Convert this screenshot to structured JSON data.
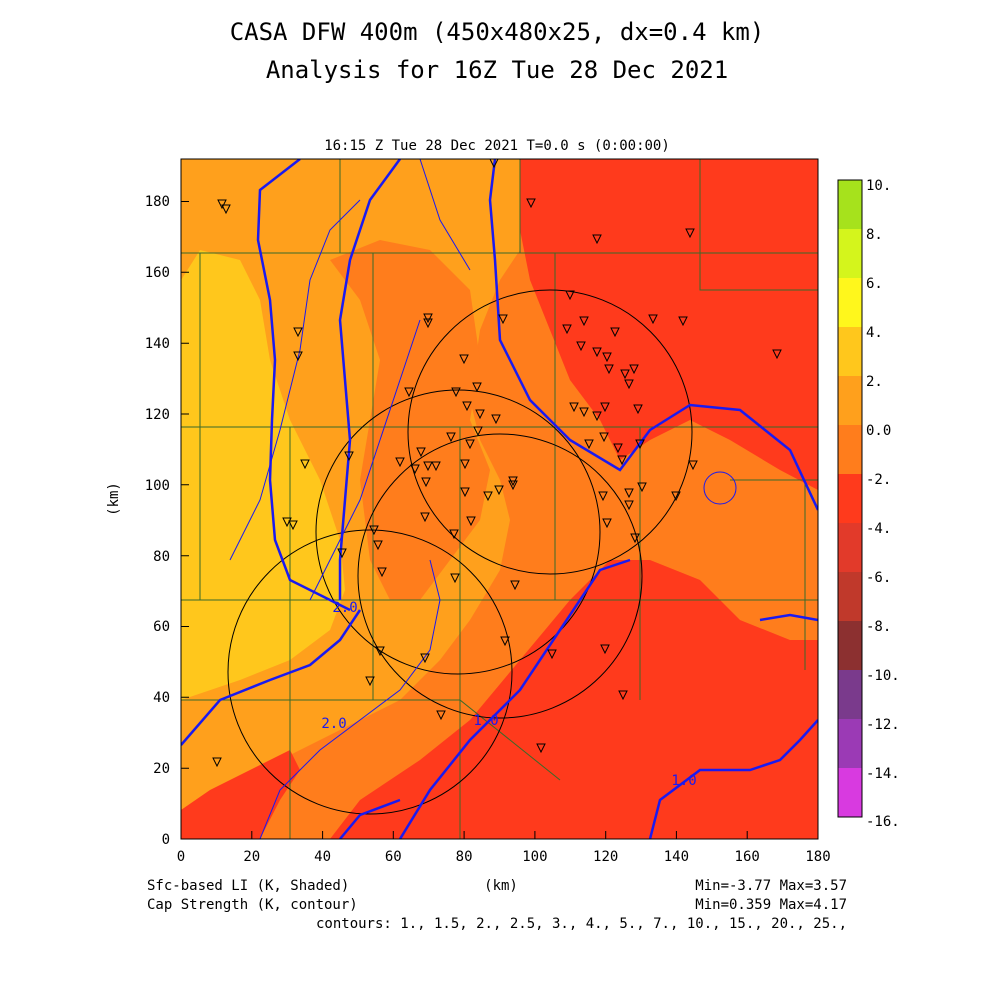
{
  "header": {
    "title_line1": "CASA DFW 400m (450x480x25, dx=0.4 km)",
    "title_line2": "Analysis for 16Z Tue 28 Dec 2021"
  },
  "plot": {
    "time_label": "16:15 Z Tue 28 Dec 2021    T=0.0 s (0:00:00)",
    "xlabel": "(km)",
    "ylabel": "(km)",
    "x_ticks": [
      "0",
      "20",
      "40",
      "60",
      "80",
      "100",
      "120",
      "140",
      "160",
      "180"
    ],
    "y_ticks": [
      "0",
      "20",
      "40",
      "60",
      "80",
      "100",
      "120",
      "140",
      "160",
      "180"
    ],
    "contour_labels": [
      "2.0",
      "1.0",
      "1.0",
      "2.0"
    ]
  },
  "colorbar": {
    "labels": [
      "10.",
      "8.",
      "6.",
      "4.",
      "2.",
      "0.0",
      "-2.",
      "-4.",
      "-6.",
      "-8.",
      "-10.",
      "-12.",
      "-14.",
      "-16."
    ],
    "colors": [
      "#a6e21c",
      "#d4f51c",
      "#fff71c",
      "#ffc71c",
      "#ffa01c",
      "#ff7d1c",
      "#ff3a1c",
      "#e23a2a",
      "#c0392b",
      "#8c3030",
      "#7a3a8c",
      "#9b3ab5",
      "#c03ac0",
      "#d83ae0"
    ]
  },
  "footer": {
    "left1": "Sfc-based LI (K, Shaded)",
    "left2": "Cap Strength (K, contour)",
    "center": "(km)",
    "right1": "Min=-3.77 Max=3.57",
    "right2": "Min=0.359 Max=4.17",
    "contours": "contours: 1., 1.5, 2., 2.5, 3., 4., 5., 7., 10., 15., 20., 25.,"
  }
}
